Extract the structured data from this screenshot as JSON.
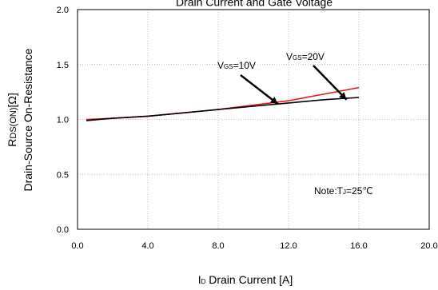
{
  "chart_data": {
    "type": "line",
    "title": "Drain Current and Gate Voltage",
    "x_ticks": [
      "0.0",
      "4.0",
      "8.0",
      "12.0",
      "16.0",
      "20.0"
    ],
    "y_ticks": [
      "0.0",
      "0.5",
      "1.0",
      "1.5",
      "2.0"
    ],
    "xlim": [
      0,
      20
    ],
    "ylim": [
      0,
      2
    ],
    "grid": true,
    "xlabel": {
      "prefix": "I",
      "sub": "D",
      "text": " Drain Current [A]"
    },
    "ylabel": {
      "line1_prefix": "R",
      "line1_sub": "DS(ON)",
      "line1_suffix": "[Ω]",
      "line2": "Drain-Source On-Resistance"
    },
    "series": [
      {
        "key": "vgs20",
        "color": "#e8141b",
        "x": [
          0.5,
          2,
          4,
          6,
          8,
          10,
          12,
          14,
          16
        ],
        "y": [
          1.0,
          1.01,
          1.03,
          1.06,
          1.09,
          1.13,
          1.17,
          1.23,
          1.29
        ]
      },
      {
        "key": "vgs10",
        "color": "#000000",
        "x": [
          0.5,
          2,
          4,
          6,
          8,
          10,
          12,
          14,
          16
        ],
        "y": [
          0.99,
          1.01,
          1.03,
          1.06,
          1.09,
          1.12,
          1.15,
          1.18,
          1.2
        ]
      }
    ],
    "annotations": [
      {
        "key": "vgs10",
        "prefix": "V",
        "sub": "GS",
        "value": "=10V",
        "tip": [
          11.4,
          1.14
        ]
      },
      {
        "key": "vgs20",
        "prefix": "V",
        "sub": "GS",
        "value": "=20V",
        "tip": [
          15.3,
          1.18
        ]
      }
    ],
    "note": {
      "prefix": "Note:T",
      "sub": "J",
      "value": "=25℃"
    }
  }
}
